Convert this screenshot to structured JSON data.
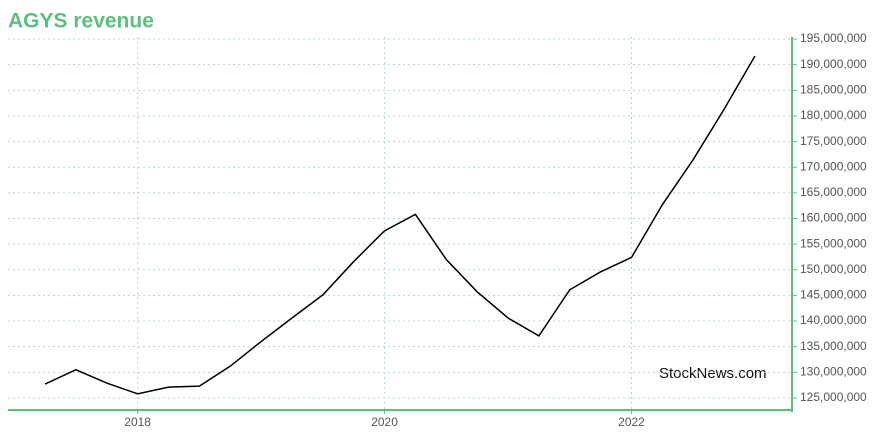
{
  "chart_data": {
    "type": "line",
    "title": "AGYS revenue",
    "watermark": "StockNews.com",
    "x": [
      2017.25,
      2017.5,
      2017.75,
      2018.0,
      2018.25,
      2018.5,
      2018.75,
      2019.0,
      2019.25,
      2019.5,
      2019.75,
      2020.0,
      2020.25,
      2020.5,
      2020.75,
      2021.0,
      2021.25,
      2021.5,
      2021.75,
      2022.0,
      2022.25,
      2022.5,
      2022.75,
      2023.0
    ],
    "series": [
      {
        "name": "revenue",
        "color": "#000000",
        "values": [
          127700000,
          130500000,
          127900000,
          125800000,
          127100000,
          127300000,
          131200000,
          136000000,
          140600000,
          145100000,
          151600000,
          157600000,
          160800000,
          152000000,
          145700000,
          140600000,
          137100000,
          146100000,
          149600000,
          152400000,
          162700000,
          171500000,
          181300000,
          191700000
        ]
      }
    ],
    "xlim": [
      2016.95,
      2023.3
    ],
    "xticks": [
      2018,
      2020,
      2022
    ],
    "ylim": [
      122650000,
      195400000
    ],
    "yticks": [
      {
        "value": 125000000,
        "label": "125,000,000"
      },
      {
        "value": 130000000,
        "label": "130,000,000"
      },
      {
        "value": 135000000,
        "label": "135,000,000"
      },
      {
        "value": 140000000,
        "label": "140,000,000"
      },
      {
        "value": 145000000,
        "label": "145,000,000"
      },
      {
        "value": 150000000,
        "label": "150,000,000"
      },
      {
        "value": 155000000,
        "label": "155,000,000"
      },
      {
        "value": 160000000,
        "label": "160,000,000"
      },
      {
        "value": 165000000,
        "label": "165,000,000"
      },
      {
        "value": 170000000,
        "label": "170,000,000"
      },
      {
        "value": 175000000,
        "label": "175,000,000"
      },
      {
        "value": 180000000,
        "label": "180,000,000"
      },
      {
        "value": 185000000,
        "label": "185,000,000"
      },
      {
        "value": 190000000,
        "label": "190,000,000"
      },
      {
        "value": 195000000,
        "label": "195,000,000"
      }
    ],
    "grid": true,
    "axis_color": "#5cbf7f"
  }
}
